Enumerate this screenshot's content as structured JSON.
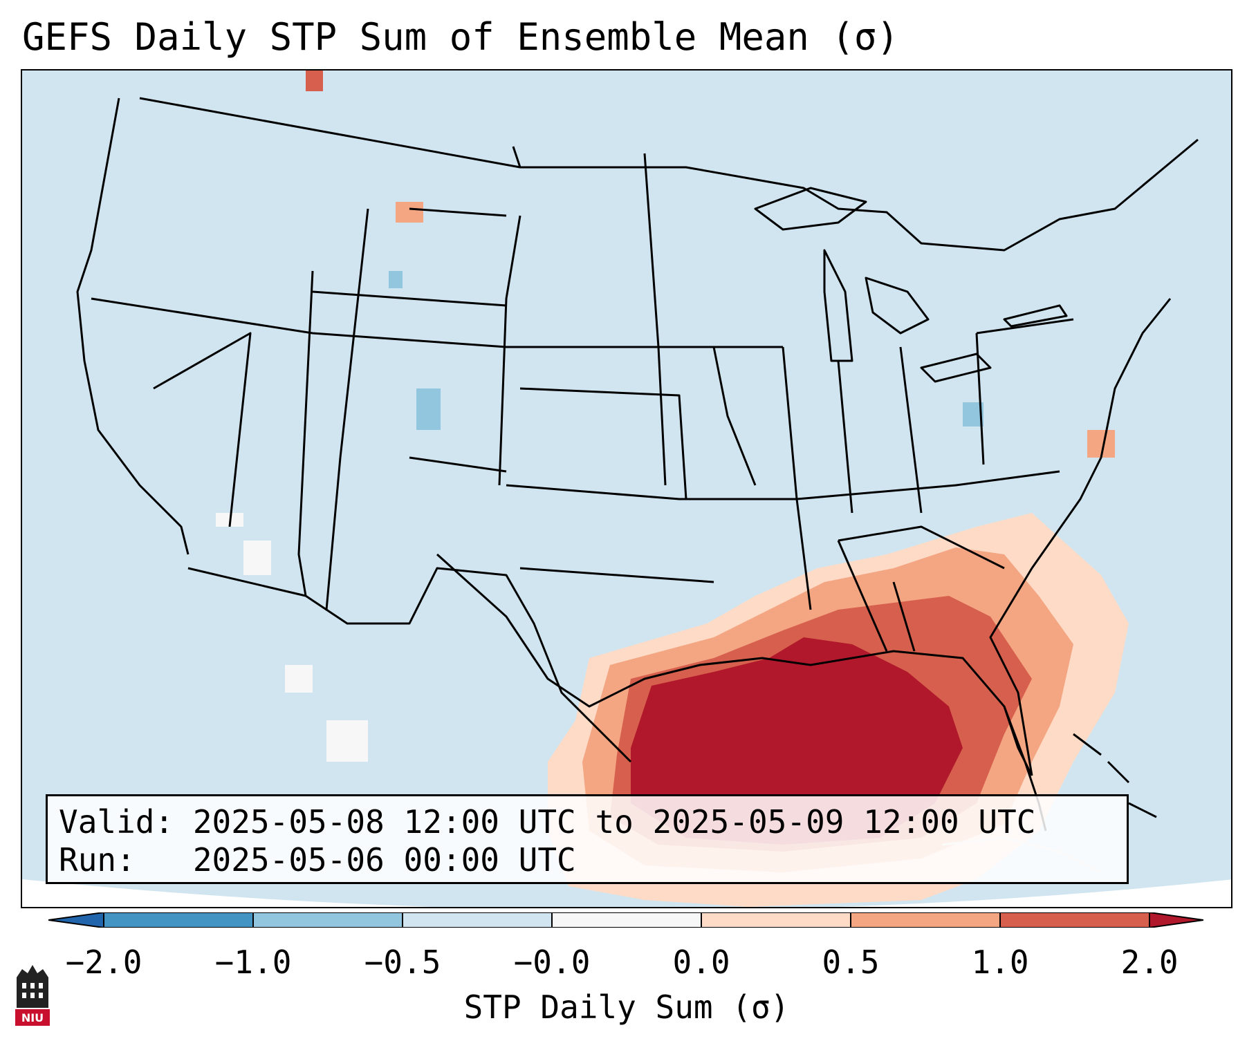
{
  "title": "GEFS Daily STP Sum of Ensemble Mean (σ)",
  "info": {
    "valid": "Valid: 2025-05-08 12:00 UTC to 2025-05-09 12:00 UTC",
    "run": "Run:   2025-05-06 00:00 UTC"
  },
  "colorbar": {
    "label": "STP Daily Sum (σ)",
    "ticks": [
      "−2.0",
      "−1.0",
      "−0.5",
      "−0.0",
      "0.0",
      "0.5",
      "1.0",
      "2.0"
    ],
    "colors": [
      "#4393c3",
      "#92c5de",
      "#d1e5f0",
      "#f7f7f7",
      "#fddbc7",
      "#f4a582",
      "#d6604d"
    ],
    "under_color": "#2166ac",
    "over_color": "#b2182b"
  },
  "map": {
    "ocean_land_color": "#d1e5f0",
    "highlight_region": "Gulf Coast / Southeast US",
    "peak_color": "#b2182b"
  },
  "logo": {
    "text": "NIU",
    "color": "#c8102e"
  }
}
